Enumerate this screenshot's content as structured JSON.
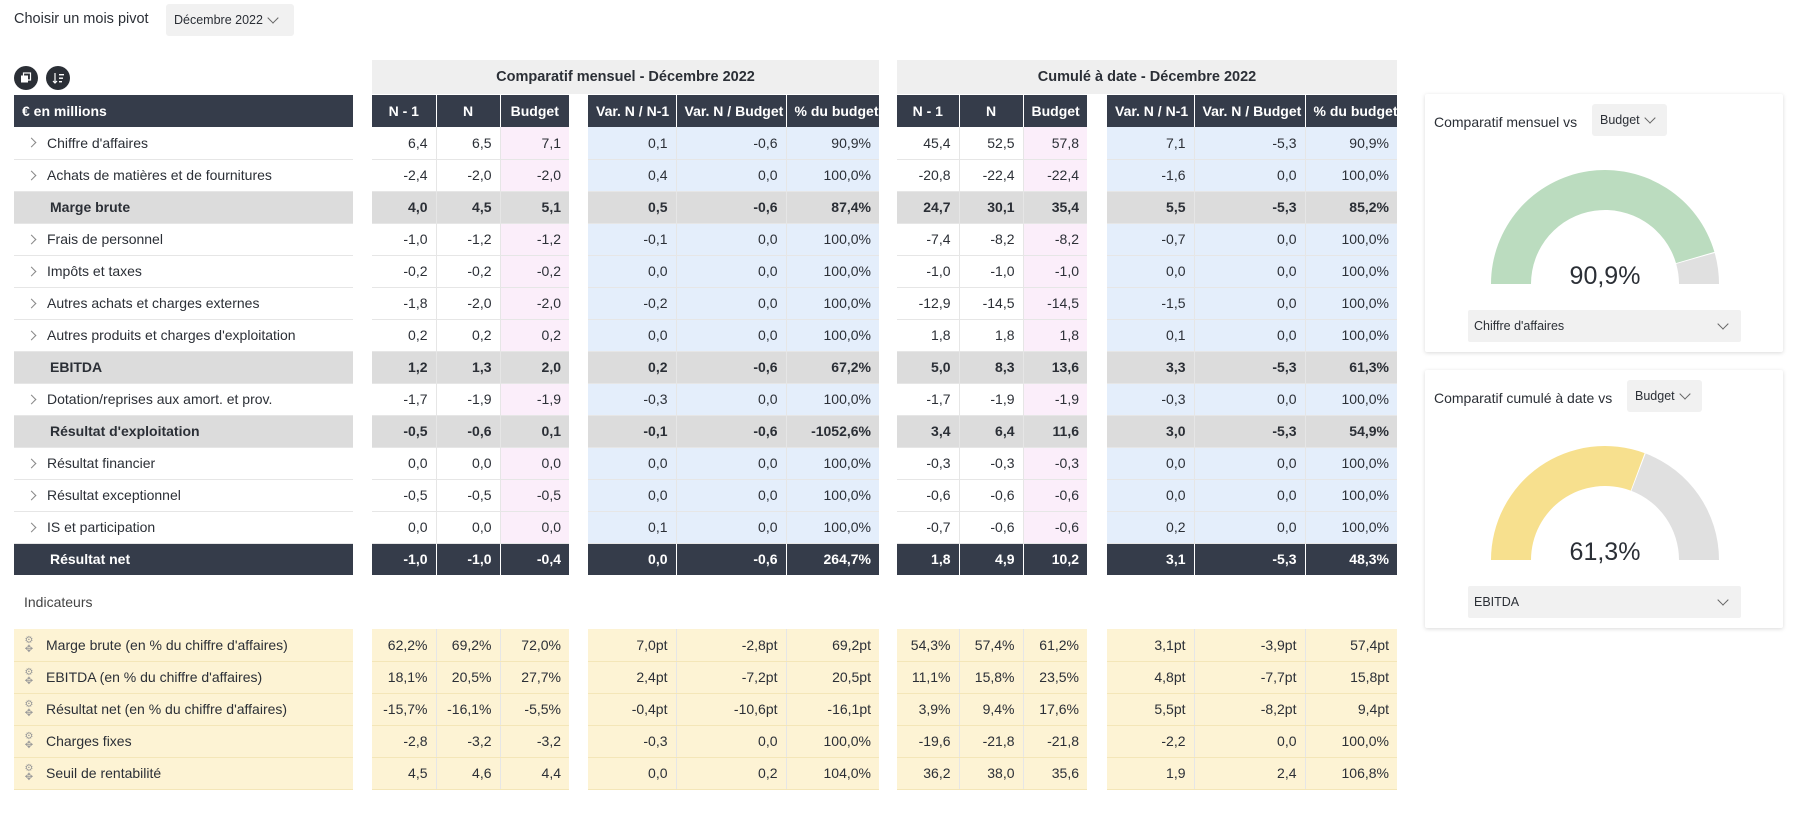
{
  "pivot": {
    "label": "Choisir un mois pivot",
    "value": "Décembre 2022"
  },
  "toolbar": {
    "icon1": "copy-icon",
    "icon2": "sort-icon"
  },
  "headers": {
    "group_monthly": "Comparatif mensuel - Décembre 2022",
    "group_cumul": "Cumulé à date - Décembre 2022",
    "unit": "€ en millions",
    "cols_main": [
      "N - 1",
      "N",
      "Budget"
    ],
    "cols_var": [
      "Var. N / N-1",
      "Var. N / Budget",
      "% du budget"
    ]
  },
  "rows": [
    {
      "label": "Chiffre d'affaires",
      "type": "detail",
      "m": [
        "6,4",
        "6,5",
        "7,1"
      ],
      "mv": [
        "0,1",
        "-0,6",
        "90,9%"
      ],
      "c": [
        "45,4",
        "52,5",
        "57,8"
      ],
      "cv": [
        "7,1",
        "-5,3",
        "90,9%"
      ]
    },
    {
      "label": "Achats de matières et de fournitures",
      "type": "detail",
      "m": [
        "-2,4",
        "-2,0",
        "-2,0"
      ],
      "mv": [
        "0,4",
        "0,0",
        "100,0%"
      ],
      "c": [
        "-20,8",
        "-22,4",
        "-22,4"
      ],
      "cv": [
        "-1,6",
        "0,0",
        "100,0%"
      ]
    },
    {
      "label": "Marge brute",
      "type": "sub",
      "m": [
        "4,0",
        "4,5",
        "5,1"
      ],
      "mv": [
        "0,5",
        "-0,6",
        "87,4%"
      ],
      "c": [
        "24,7",
        "30,1",
        "35,4"
      ],
      "cv": [
        "5,5",
        "-5,3",
        "85,2%"
      ]
    },
    {
      "label": "Frais de personnel",
      "type": "detail",
      "m": [
        "-1,0",
        "-1,2",
        "-1,2"
      ],
      "mv": [
        "-0,1",
        "0,0",
        "100,0%"
      ],
      "c": [
        "-7,4",
        "-8,2",
        "-8,2"
      ],
      "cv": [
        "-0,7",
        "0,0",
        "100,0%"
      ]
    },
    {
      "label": "Impôts et taxes",
      "type": "detail",
      "m": [
        "-0,2",
        "-0,2",
        "-0,2"
      ],
      "mv": [
        "0,0",
        "0,0",
        "100,0%"
      ],
      "c": [
        "-1,0",
        "-1,0",
        "-1,0"
      ],
      "cv": [
        "0,0",
        "0,0",
        "100,0%"
      ]
    },
    {
      "label": "Autres achats et charges externes",
      "type": "detail",
      "m": [
        "-1,8",
        "-2,0",
        "-2,0"
      ],
      "mv": [
        "-0,2",
        "0,0",
        "100,0%"
      ],
      "c": [
        "-12,9",
        "-14,5",
        "-14,5"
      ],
      "cv": [
        "-1,5",
        "0,0",
        "100,0%"
      ]
    },
    {
      "label": "Autres produits et charges d'exploitation",
      "type": "detail",
      "m": [
        "0,2",
        "0,2",
        "0,2"
      ],
      "mv": [
        "0,0",
        "0,0",
        "100,0%"
      ],
      "c": [
        "1,8",
        "1,8",
        "1,8"
      ],
      "cv": [
        "0,1",
        "0,0",
        "100,0%"
      ]
    },
    {
      "label": "EBITDA",
      "type": "sub",
      "m": [
        "1,2",
        "1,3",
        "2,0"
      ],
      "mv": [
        "0,2",
        "-0,6",
        "67,2%"
      ],
      "c": [
        "5,0",
        "8,3",
        "13,6"
      ],
      "cv": [
        "3,3",
        "-5,3",
        "61,3%"
      ]
    },
    {
      "label": "Dotation/reprises aux amort. et prov.",
      "type": "detail",
      "m": [
        "-1,7",
        "-1,9",
        "-1,9"
      ],
      "mv": [
        "-0,3",
        "0,0",
        "100,0%"
      ],
      "c": [
        "-1,7",
        "-1,9",
        "-1,9"
      ],
      "cv": [
        "-0,3",
        "0,0",
        "100,0%"
      ]
    },
    {
      "label": "Résultat d'exploitation",
      "type": "sub",
      "m": [
        "-0,5",
        "-0,6",
        "0,1"
      ],
      "mv": [
        "-0,1",
        "-0,6",
        "-1052,6%"
      ],
      "c": [
        "3,4",
        "6,4",
        "11,6"
      ],
      "cv": [
        "3,0",
        "-5,3",
        "54,9%"
      ]
    },
    {
      "label": "Résultat financier",
      "type": "detail",
      "m": [
        "0,0",
        "0,0",
        "0,0"
      ],
      "mv": [
        "0,0",
        "0,0",
        "100,0%"
      ],
      "c": [
        "-0,3",
        "-0,3",
        "-0,3"
      ],
      "cv": [
        "0,0",
        "0,0",
        "100,0%"
      ]
    },
    {
      "label": "Résultat exceptionnel",
      "type": "detail",
      "m": [
        "-0,5",
        "-0,5",
        "-0,5"
      ],
      "mv": [
        "0,0",
        "0,0",
        "100,0%"
      ],
      "c": [
        "-0,6",
        "-0,6",
        "-0,6"
      ],
      "cv": [
        "0,0",
        "0,0",
        "100,0%"
      ]
    },
    {
      "label": "IS et participation",
      "type": "detail",
      "m": [
        "0,0",
        "0,0",
        "0,0"
      ],
      "mv": [
        "0,1",
        "0,0",
        "100,0%"
      ],
      "c": [
        "-0,7",
        "-0,6",
        "-0,6"
      ],
      "cv": [
        "0,2",
        "0,0",
        "100,0%"
      ]
    },
    {
      "label": "Résultat net",
      "type": "net",
      "m": [
        "-1,0",
        "-1,0",
        "-0,4"
      ],
      "mv": [
        "0,0",
        "-0,6",
        "264,7%"
      ],
      "c": [
        "1,8",
        "4,9",
        "10,2"
      ],
      "cv": [
        "3,1",
        "-5,3",
        "48,3%"
      ]
    },
    {
      "label": "Indicateurs",
      "type": "gap",
      "m": [
        "",
        "",
        ""
      ],
      "mv": [
        "",
        "",
        ""
      ],
      "c": [
        "",
        "",
        ""
      ],
      "cv": [
        "",
        "",
        ""
      ]
    },
    {
      "label": "Marge brute (en % du chiffre d'affaires)",
      "type": "ind",
      "m": [
        "62,2%",
        "69,2%",
        "72,0%"
      ],
      "mv": [
        "7,0pt",
        "-2,8pt",
        "69,2pt"
      ],
      "c": [
        "54,3%",
        "57,4%",
        "61,2%"
      ],
      "cv": [
        "3,1pt",
        "-3,9pt",
        "57,4pt"
      ]
    },
    {
      "label": "EBITDA (en % du chiffre d'affaires)",
      "type": "ind",
      "m": [
        "18,1%",
        "20,5%",
        "27,7%"
      ],
      "mv": [
        "2,4pt",
        "-7,2pt",
        "20,5pt"
      ],
      "c": [
        "11,1%",
        "15,8%",
        "23,5%"
      ],
      "cv": [
        "4,8pt",
        "-7,7pt",
        "15,8pt"
      ]
    },
    {
      "label": "Résultat net (en % du chiffre d'affaires)",
      "type": "ind",
      "m": [
        "-15,7%",
        "-16,1%",
        "-5,5%"
      ],
      "mv": [
        "-0,4pt",
        "-10,6pt",
        "-16,1pt"
      ],
      "c": [
        "3,9%",
        "9,4%",
        "17,6%"
      ],
      "cv": [
        "5,5pt",
        "-8,2pt",
        "9,4pt"
      ]
    },
    {
      "label": "Charges fixes",
      "type": "ind",
      "m": [
        "-2,8",
        "-3,2",
        "-3,2"
      ],
      "mv": [
        "-0,3",
        "0,0",
        "100,0%"
      ],
      "c": [
        "-19,6",
        "-21,8",
        "-21,8"
      ],
      "cv": [
        "-2,2",
        "0,0",
        "100,0%"
      ]
    },
    {
      "label": "Seuil de rentabilité",
      "type": "ind",
      "m": [
        "4,5",
        "4,6",
        "4,4"
      ],
      "mv": [
        "0,0",
        "0,2",
        "104,0%"
      ],
      "c": [
        "36,2",
        "38,0",
        "35,6"
      ],
      "cv": [
        "1,9",
        "2,4",
        "106,8%"
      ]
    }
  ],
  "gauge1": {
    "title": "Comparatif mensuel vs",
    "select": "Budget",
    "value_text": "90,9%",
    "value": 0.909,
    "dropdown": "Chiffre d'affaires",
    "color": "#bbdcbf"
  },
  "gauge2": {
    "title": "Comparatif cumulé à date vs",
    "select": "Budget",
    "value_text": "61,3%",
    "value": 0.613,
    "dropdown": "EBITDA",
    "color": "#f7e08e"
  },
  "colors": {
    "header": "#353c4a",
    "subtotal": "#dcdcdc",
    "budget": "#fbeefa",
    "variance": "#e4eefb",
    "indicator": "#fdf3d4",
    "gauge_rest": "#e0e0e0"
  }
}
